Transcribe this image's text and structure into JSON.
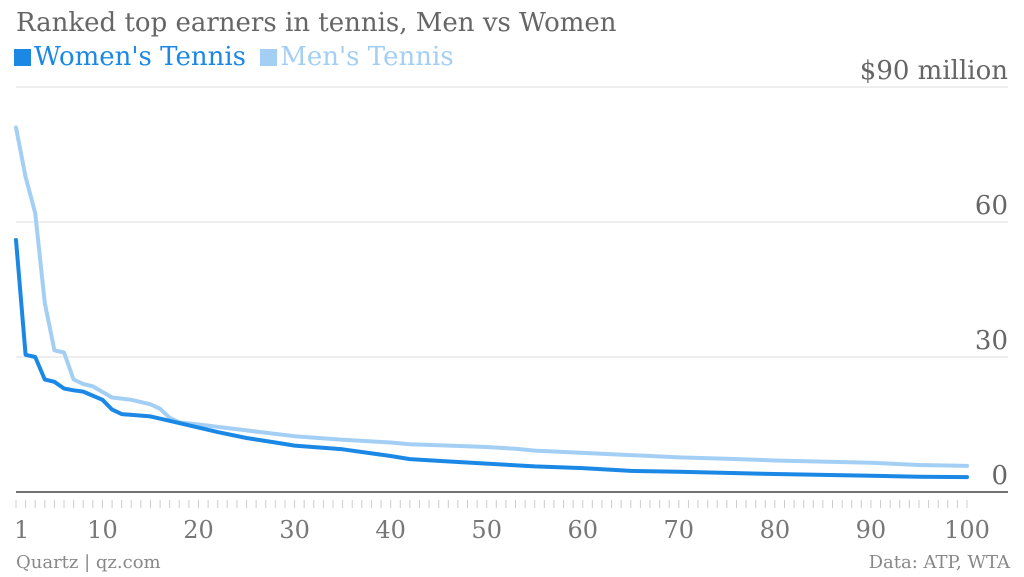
{
  "chart_data": {
    "type": "line",
    "title": "Ranked top earners in tennis, Men vs Women",
    "legend": "top-left",
    "grid": true,
    "xlim": [
      1,
      100
    ],
    "ylim": [
      0,
      90
    ],
    "x_ticks": [
      1,
      10,
      20,
      30,
      40,
      50,
      60,
      70,
      80,
      90,
      100
    ],
    "y_ticks": [
      {
        "value": 0,
        "label": "0"
      },
      {
        "value": 30,
        "label": "30"
      },
      {
        "value": 60,
        "label": "60"
      },
      {
        "value": 90,
        "label": "$90 million"
      }
    ],
    "series": [
      {
        "name": "Women's Tennis",
        "color": "#1b88e6",
        "keypoints": [
          [
            1,
            56
          ],
          [
            2,
            30.5
          ],
          [
            3,
            30
          ],
          [
            4,
            25
          ],
          [
            5,
            24.5
          ],
          [
            6,
            23
          ],
          [
            7,
            22.6
          ],
          [
            8,
            22.3
          ],
          [
            10,
            20.5
          ],
          [
            11,
            18.3
          ],
          [
            12,
            17.3
          ],
          [
            15,
            16.8
          ],
          [
            18,
            15.3
          ],
          [
            20,
            14.3
          ],
          [
            22,
            13.3
          ],
          [
            25,
            12
          ],
          [
            28,
            11
          ],
          [
            30,
            10.3
          ],
          [
            35,
            9.5
          ],
          [
            40,
            8
          ],
          [
            42,
            7.3
          ],
          [
            45,
            6.9
          ],
          [
            50,
            6.3
          ],
          [
            55,
            5.7
          ],
          [
            60,
            5.3
          ],
          [
            65,
            4.7
          ],
          [
            70,
            4.5
          ],
          [
            80,
            4
          ],
          [
            90,
            3.6
          ],
          [
            95,
            3.4
          ],
          [
            100,
            3.3
          ]
        ]
      },
      {
        "name": "Men's Tennis",
        "color": "#a3cff5",
        "keypoints": [
          [
            1,
            81
          ],
          [
            2,
            70
          ],
          [
            3,
            62
          ],
          [
            4,
            42
          ],
          [
            5,
            31.5
          ],
          [
            6,
            31
          ],
          [
            7,
            25
          ],
          [
            8,
            24
          ],
          [
            9,
            23.5
          ],
          [
            11,
            21
          ],
          [
            13,
            20.5
          ],
          [
            15,
            19.5
          ],
          [
            16,
            18.5
          ],
          [
            17,
            16.5
          ],
          [
            18,
            15.5
          ],
          [
            20,
            15
          ],
          [
            25,
            13.7
          ],
          [
            30,
            12.4
          ],
          [
            35,
            11.6
          ],
          [
            40,
            11
          ],
          [
            42,
            10.6
          ],
          [
            45,
            10.4
          ],
          [
            50,
            10
          ],
          [
            53,
            9.6
          ],
          [
            55,
            9.2
          ],
          [
            60,
            8.7
          ],
          [
            65,
            8.2
          ],
          [
            70,
            7.7
          ],
          [
            75,
            7.4
          ],
          [
            80,
            7
          ],
          [
            90,
            6.5
          ],
          [
            95,
            6
          ],
          [
            100,
            5.8
          ]
        ]
      }
    ]
  },
  "footer": {
    "source": "Quartz | qz.com",
    "credit": "Data: ATP, WTA"
  }
}
